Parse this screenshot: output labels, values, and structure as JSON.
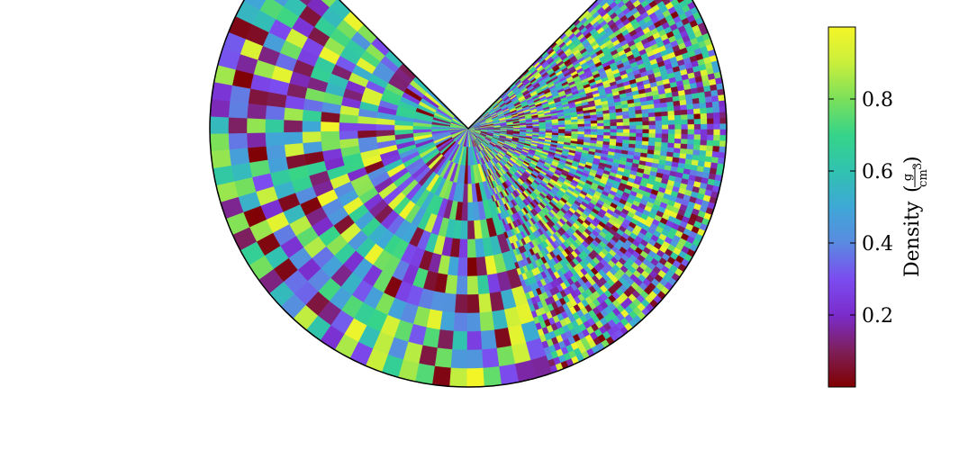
{
  "chart_data": {
    "type": "heatmap",
    "subtype": "polar-wedge",
    "theta_range_deg": [
      -135,
      135
    ],
    "theta_zero": "bottom",
    "regions": [
      {
        "name": "coarse",
        "theta_deg": [
          -135,
          19
        ],
        "n_radial": 14,
        "n_angular": 40
      },
      {
        "name": "fine",
        "theta_deg": [
          19,
          135
        ],
        "n_radial": 40,
        "n_angular": 90
      }
    ],
    "values_note": "random densities in [0, 1]",
    "colormap": [
      "#800000",
      "#7e1f5a",
      "#7b2ccc",
      "#7b4cf0",
      "#5a8ae0",
      "#3ea8d6",
      "#31c2b0",
      "#35d489",
      "#7be05a",
      "#c9ef3c",
      "#f5f527"
    ],
    "colorbar": {
      "label": "Density",
      "unit_numerator": "g",
      "unit_denominator": "cm",
      "unit_exponent": "3",
      "range": [
        0,
        1
      ],
      "ticks": [
        {
          "value": 0.2,
          "label": "0.2"
        },
        {
          "value": 0.4,
          "label": "0.4"
        },
        {
          "value": 0.6,
          "label": "0.6"
        },
        {
          "value": 0.8,
          "label": "0.8"
        }
      ]
    }
  }
}
